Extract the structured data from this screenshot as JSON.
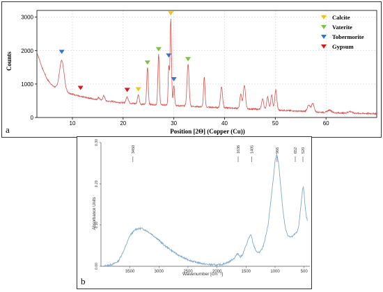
{
  "chart_data": [
    {
      "panel_label": "a",
      "type": "line",
      "title": "",
      "xlabel": "Position [2Θ] (Copper (Cu))",
      "ylabel": "Counts",
      "xlim": [
        3,
        70
      ],
      "ylim": [
        0,
        3200
      ],
      "xticks": [
        10,
        20,
        30,
        40,
        50,
        60
      ],
      "yticks": [
        0,
        1000,
        2000,
        3000
      ],
      "grid": true,
      "line_color": "#d9534f",
      "baseline": [
        [
          3,
          1950
        ],
        [
          4,
          1500
        ],
        [
          5,
          1150
        ],
        [
          6,
          960
        ],
        [
          7,
          860
        ],
        [
          8,
          800
        ],
        [
          9,
          740
        ],
        [
          10,
          700
        ],
        [
          11,
          660
        ],
        [
          12,
          620
        ],
        [
          13,
          590
        ],
        [
          14,
          560
        ],
        [
          15,
          530
        ],
        [
          16,
          505
        ],
        [
          17,
          485
        ],
        [
          18,
          470
        ],
        [
          19,
          455
        ],
        [
          20,
          440
        ],
        [
          21,
          430
        ],
        [
          22,
          420
        ],
        [
          23,
          400
        ],
        [
          24,
          395
        ],
        [
          25,
          390
        ],
        [
          26,
          385
        ],
        [
          27,
          380
        ],
        [
          28,
          375
        ],
        [
          29,
          370
        ],
        [
          30,
          360
        ],
        [
          32,
          345
        ],
        [
          34,
          330
        ],
        [
          36,
          315
        ],
        [
          38,
          300
        ],
        [
          40,
          290
        ],
        [
          42,
          280
        ],
        [
          44,
          265
        ],
        [
          46,
          250
        ],
        [
          48,
          240
        ],
        [
          50,
          225
        ],
        [
          52,
          210
        ],
        [
          54,
          195
        ],
        [
          56,
          180
        ],
        [
          58,
          165
        ],
        [
          60,
          150
        ],
        [
          62,
          140
        ],
        [
          64,
          130
        ],
        [
          66,
          125
        ],
        [
          68,
          120
        ],
        [
          70,
          115
        ]
      ],
      "peaks": [
        [
          7.9,
          1700,
          0.45
        ],
        [
          11.6,
          620,
          0.3
        ],
        [
          15.2,
          600,
          0.18
        ],
        [
          16.2,
          650,
          0.2
        ],
        [
          18.0,
          480,
          0.25
        ],
        [
          20.8,
          620,
          0.22
        ],
        [
          23.0,
          680,
          0.18
        ],
        [
          24.8,
          1500,
          0.15
        ],
        [
          27.0,
          1880,
          0.15
        ],
        [
          29.4,
          2950,
          0.14
        ],
        [
          29.0,
          1500,
          0.12
        ],
        [
          30.0,
          960,
          0.14
        ],
        [
          32.8,
          1600,
          0.2
        ],
        [
          36.0,
          1200,
          0.15
        ],
        [
          39.4,
          920,
          0.2
        ],
        [
          43.2,
          700,
          0.18
        ],
        [
          43.9,
          950,
          0.22
        ],
        [
          47.5,
          560,
          0.2
        ],
        [
          48.5,
          620,
          0.2
        ],
        [
          49.3,
          680,
          0.18
        ],
        [
          50.1,
          820,
          0.2
        ],
        [
          56.6,
          360,
          0.3
        ],
        [
          57.4,
          420,
          0.25
        ],
        [
          60.7,
          220,
          0.4
        ],
        [
          64.7,
          180,
          0.4
        ]
      ],
      "legend": {
        "position": "top-right",
        "entries": [
          {
            "name": "Calcite",
            "color": "#f0c419"
          },
          {
            "name": "Vaterite",
            "color": "#7dc242"
          },
          {
            "name": "Tobermorite",
            "color": "#3a73c4"
          },
          {
            "name": "Gypsum",
            "color": "#d7191c"
          }
        ]
      },
      "markers": [
        {
          "phase": "Calcite",
          "x": 29.4,
          "y": 3050
        },
        {
          "phase": "Calcite",
          "x": 23.0,
          "y": 780
        },
        {
          "phase": "Vaterite",
          "x": 24.8,
          "y": 1580
        },
        {
          "phase": "Vaterite",
          "x": 27.0,
          "y": 1980
        },
        {
          "phase": "Vaterite",
          "x": 32.8,
          "y": 1680
        },
        {
          "phase": "Tobermorite",
          "x": 7.9,
          "y": 1900
        },
        {
          "phase": "Tobermorite",
          "x": 29.0,
          "y": 1790
        },
        {
          "phase": "Tobermorite",
          "x": 30.0,
          "y": 1080
        },
        {
          "phase": "Gypsum",
          "x": 11.6,
          "y": 820
        },
        {
          "phase": "Gypsum",
          "x": 20.8,
          "y": 760
        }
      ]
    },
    {
      "panel_label": "b",
      "type": "line",
      "title": "",
      "xlabel": "Wavenumber [cm⁻¹]",
      "ylabel": "Absorbance Units",
      "xlim": [
        4000,
        400
      ],
      "ylim": [
        0,
        0.3
      ],
      "xticks": [
        3500,
        3000,
        2500,
        2000,
        1500,
        1000,
        500
      ],
      "yticks": [
        0.0,
        0.1,
        0.2,
        0.3
      ],
      "ytick_labels": [
        "0.00",
        "0.10",
        "0.20",
        "0.30"
      ],
      "line_color": "#7fa9cc",
      "peak_labels": [
        3450,
        1636,
        1405,
        966,
        652,
        520
      ],
      "points": [
        [
          3950,
          0.0
        ],
        [
          3800,
          0.005
        ],
        [
          3700,
          0.012
        ],
        [
          3600,
          0.04
        ],
        [
          3500,
          0.075
        ],
        [
          3400,
          0.09
        ],
        [
          3300,
          0.092
        ],
        [
          3200,
          0.085
        ],
        [
          3100,
          0.075
        ],
        [
          3000,
          0.063
        ],
        [
          2900,
          0.05
        ],
        [
          2800,
          0.04
        ],
        [
          2700,
          0.03
        ],
        [
          2600,
          0.022
        ],
        [
          2500,
          0.016
        ],
        [
          2400,
          0.011
        ],
        [
          2300,
          0.008
        ],
        [
          2200,
          0.005
        ],
        [
          2100,
          0.004
        ],
        [
          2000,
          0.003
        ],
        [
          1900,
          0.005
        ],
        [
          1800,
          0.01
        ],
        [
          1700,
          0.02
        ],
        [
          1640,
          0.032
        ],
        [
          1600,
          0.022
        ],
        [
          1560,
          0.028
        ],
        [
          1500,
          0.05
        ],
        [
          1450,
          0.07
        ],
        [
          1420,
          0.075
        ],
        [
          1405,
          0.072
        ],
        [
          1380,
          0.055
        ],
        [
          1320,
          0.035
        ],
        [
          1280,
          0.033
        ],
        [
          1220,
          0.042
        ],
        [
          1180,
          0.06
        ],
        [
          1120,
          0.1
        ],
        [
          1080,
          0.15
        ],
        [
          1040,
          0.2
        ],
        [
          1000,
          0.255
        ],
        [
          970,
          0.272
        ],
        [
          940,
          0.25
        ],
        [
          900,
          0.19
        ],
        [
          860,
          0.13
        ],
        [
          820,
          0.09
        ],
        [
          780,
          0.075
        ],
        [
          740,
          0.072
        ],
        [
          700,
          0.072
        ],
        [
          660,
          0.078
        ],
        [
          620,
          0.083
        ],
        [
          590,
          0.1
        ],
        [
          560,
          0.14
        ],
        [
          530,
          0.18
        ],
        [
          515,
          0.195
        ],
        [
          500,
          0.18
        ],
        [
          480,
          0.14
        ],
        [
          460,
          0.12
        ],
        [
          440,
          0.11
        ]
      ]
    }
  ]
}
